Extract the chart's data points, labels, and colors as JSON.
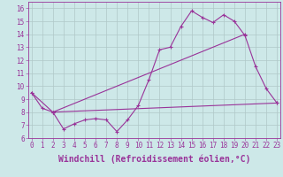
{
  "xlabel": "Windchill (Refroidissement éolien,°C)",
  "background_color": "#cde8e8",
  "grid_color": "#b0c8c8",
  "line_color": "#993399",
  "x_ticks": [
    0,
    1,
    2,
    3,
    4,
    5,
    6,
    7,
    8,
    9,
    10,
    11,
    12,
    13,
    14,
    15,
    16,
    17,
    18,
    19,
    20,
    21,
    22,
    23
  ],
  "y_ticks": [
    6,
    7,
    8,
    9,
    10,
    11,
    12,
    13,
    14,
    15,
    16
  ],
  "ylim": [
    6.0,
    16.5
  ],
  "xlim": [
    -0.3,
    23.3
  ],
  "line1_x": [
    0,
    1,
    2,
    3,
    4,
    5,
    6,
    7,
    8,
    9,
    10,
    11,
    12,
    13,
    14,
    15,
    16,
    17,
    18,
    19,
    20,
    21,
    22,
    23
  ],
  "line1_y": [
    9.5,
    8.3,
    8.0,
    6.7,
    7.1,
    7.4,
    7.5,
    7.4,
    6.5,
    7.4,
    8.5,
    10.5,
    12.8,
    13.0,
    14.6,
    15.8,
    15.3,
    14.9,
    15.5,
    15.0,
    13.9,
    11.5,
    9.8,
    8.7
  ],
  "line2_x": [
    0,
    2,
    23
  ],
  "line2_y": [
    9.5,
    8.0,
    8.7
  ],
  "line3_x": [
    2,
    20
  ],
  "line3_y": [
    8.0,
    14.0
  ],
  "tick_fontsize": 5.5,
  "label_fontsize": 7.0
}
